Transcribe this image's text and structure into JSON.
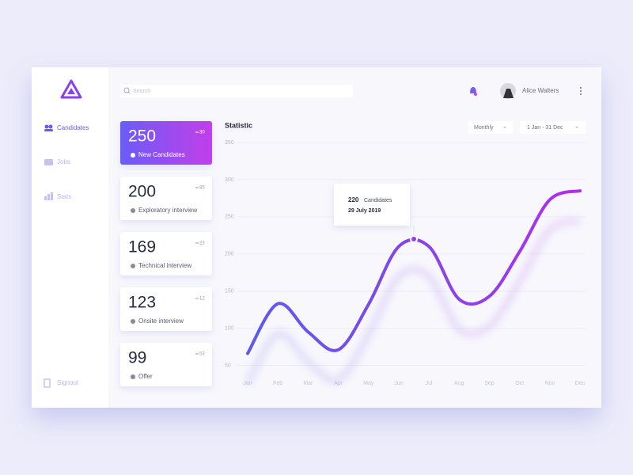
{
  "sidebar": {
    "nav": [
      "Candidates",
      "Jobs",
      "Stats"
    ],
    "signout": "Signout"
  },
  "header": {
    "search_placeholder": "Search",
    "user": "Alice Walters"
  },
  "cards": [
    {
      "value": 250,
      "label": "New Candidates",
      "change": 30
    },
    {
      "value": 200,
      "label": "Exploratory interview",
      "change": 85
    },
    {
      "value": 169,
      "label": "Technical interview",
      "change": 23
    },
    {
      "value": 123,
      "label": "Onsite interview",
      "change": 12
    },
    {
      "value": 99,
      "label": "Offer",
      "change": 53
    }
  ],
  "chart_data": {
    "type": "line",
    "title": "Statistic",
    "filters": [
      "Monthly",
      "1 Jan - 31 Dec"
    ],
    "categories": [
      "Jan",
      "Feb",
      "Mar",
      "Apr",
      "May",
      "Jun",
      "Jul",
      "Aug",
      "Sep",
      "Oct",
      "Nov",
      "Dec"
    ],
    "values": [
      66,
      133,
      95,
      71,
      132,
      210,
      210,
      139,
      143,
      203,
      273,
      285
    ],
    "colors": [
      "#5b5bef",
      "#b02ee9"
    ],
    "ylim": [
      25,
      350
    ],
    "yticks": [
      50,
      100,
      150,
      200,
      250,
      300,
      350
    ],
    "grid": true,
    "annotation": {
      "value": 220,
      "label": "Candidates",
      "date": "29 July 2019"
    }
  }
}
